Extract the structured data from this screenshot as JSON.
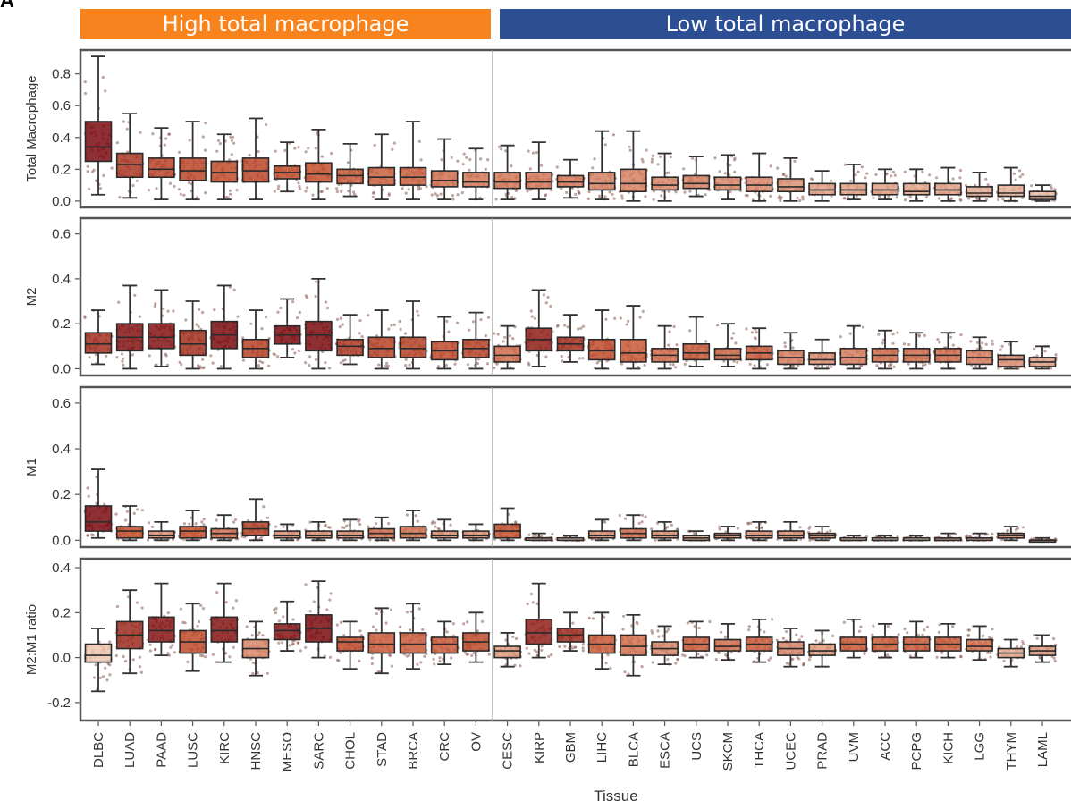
{
  "panel_letter": "A",
  "groups": {
    "high": {
      "label": "High total macrophage",
      "color": "#f7831f"
    },
    "low": {
      "label": "Low total macrophage",
      "color": "#2c4e93"
    }
  },
  "colors": {
    "high": "#7a0a10",
    "mid": "#c4502e",
    "low": "#f7dcc4",
    "point": "#8a5a50",
    "frame": "#555555"
  },
  "chart_data": {
    "type": "box",
    "xlabel": "Tissue",
    "categories": [
      "DLBC",
      "LUAD",
      "PAAD",
      "LUSC",
      "KIRC",
      "HNSC",
      "MESO",
      "SARC",
      "CHOL",
      "STAD",
      "BRCA",
      "CRC",
      "OV",
      "CESC",
      "KIRP",
      "GBM",
      "LIHC",
      "BLCA",
      "ESCA",
      "UCS",
      "SKCM",
      "THCA",
      "UCEC",
      "PRAD",
      "UVM",
      "ACC",
      "PCPG",
      "KICH",
      "LGG",
      "THYM",
      "LAML"
    ],
    "high_group_count": 13,
    "panels": [
      {
        "ylabel": "Total Macrophage",
        "ylim": [
          -0.04,
          0.95
        ],
        "yticks": [
          0.0,
          0.2,
          0.4,
          0.6,
          0.8
        ],
        "ytick_labels": [
          "0.0",
          "0.2",
          "0.4",
          "0.6",
          "0.8"
        ],
        "stats": [
          [
            0.04,
            0.25,
            0.34,
            0.5,
            0.91
          ],
          [
            0.02,
            0.15,
            0.23,
            0.3,
            0.55
          ],
          [
            0.01,
            0.15,
            0.2,
            0.27,
            0.46
          ],
          [
            0.01,
            0.13,
            0.19,
            0.27,
            0.5
          ],
          [
            0.01,
            0.12,
            0.18,
            0.25,
            0.42
          ],
          [
            0.01,
            0.12,
            0.19,
            0.27,
            0.52
          ],
          [
            0.06,
            0.14,
            0.18,
            0.22,
            0.37
          ],
          [
            0.01,
            0.12,
            0.17,
            0.24,
            0.45
          ],
          [
            0.03,
            0.11,
            0.16,
            0.2,
            0.36
          ],
          [
            0.01,
            0.1,
            0.15,
            0.21,
            0.42
          ],
          [
            0.01,
            0.1,
            0.15,
            0.21,
            0.5
          ],
          [
            0.01,
            0.09,
            0.13,
            0.19,
            0.39
          ],
          [
            0.01,
            0.09,
            0.12,
            0.18,
            0.33
          ],
          [
            0.01,
            0.08,
            0.12,
            0.18,
            0.35
          ],
          [
            0.01,
            0.08,
            0.12,
            0.18,
            0.37
          ],
          [
            0.02,
            0.09,
            0.12,
            0.16,
            0.26
          ],
          [
            0.01,
            0.07,
            0.11,
            0.18,
            0.44
          ],
          [
            0.0,
            0.06,
            0.11,
            0.2,
            0.44
          ],
          [
            0.0,
            0.07,
            0.1,
            0.15,
            0.3
          ],
          [
            0.03,
            0.08,
            0.11,
            0.16,
            0.28
          ],
          [
            0.01,
            0.07,
            0.1,
            0.15,
            0.29
          ],
          [
            0.0,
            0.06,
            0.1,
            0.15,
            0.3
          ],
          [
            0.0,
            0.06,
            0.09,
            0.14,
            0.27
          ],
          [
            0.0,
            0.04,
            0.07,
            0.11,
            0.19
          ],
          [
            0.01,
            0.04,
            0.07,
            0.11,
            0.23
          ],
          [
            0.01,
            0.04,
            0.07,
            0.11,
            0.2
          ],
          [
            0.0,
            0.04,
            0.06,
            0.11,
            0.2
          ],
          [
            0.0,
            0.04,
            0.07,
            0.11,
            0.21
          ],
          [
            0.0,
            0.03,
            0.05,
            0.09,
            0.18
          ],
          [
            0.0,
            0.03,
            0.05,
            0.1,
            0.21
          ],
          [
            0.0,
            0.01,
            0.03,
            0.06,
            0.1
          ]
        ]
      },
      {
        "ylabel": "M2",
        "ylim": [
          -0.03,
          0.67
        ],
        "yticks": [
          0.0,
          0.2,
          0.4,
          0.6
        ],
        "ytick_labels": [
          "0.0",
          "0.2",
          "0.4",
          "0.6"
        ],
        "stats": [
          [
            0.02,
            0.07,
            0.11,
            0.16,
            0.26
          ],
          [
            0.0,
            0.08,
            0.14,
            0.2,
            0.37
          ],
          [
            0.01,
            0.09,
            0.14,
            0.2,
            0.35
          ],
          [
            0.0,
            0.06,
            0.11,
            0.17,
            0.3
          ],
          [
            0.0,
            0.09,
            0.15,
            0.21,
            0.37
          ],
          [
            0.0,
            0.05,
            0.09,
            0.13,
            0.26
          ],
          [
            0.05,
            0.11,
            0.15,
            0.19,
            0.31
          ],
          [
            0.0,
            0.08,
            0.15,
            0.21,
            0.4
          ],
          [
            0.02,
            0.06,
            0.1,
            0.13,
            0.24
          ],
          [
            0.0,
            0.05,
            0.09,
            0.14,
            0.26
          ],
          [
            0.0,
            0.05,
            0.09,
            0.14,
            0.3
          ],
          [
            0.0,
            0.04,
            0.08,
            0.12,
            0.23
          ],
          [
            0.0,
            0.05,
            0.09,
            0.13,
            0.25
          ],
          [
            0.0,
            0.03,
            0.06,
            0.1,
            0.19
          ],
          [
            0.01,
            0.08,
            0.13,
            0.18,
            0.35
          ],
          [
            0.03,
            0.08,
            0.11,
            0.14,
            0.24
          ],
          [
            0.0,
            0.04,
            0.08,
            0.13,
            0.26
          ],
          [
            0.0,
            0.03,
            0.07,
            0.13,
            0.28
          ],
          [
            0.0,
            0.03,
            0.06,
            0.09,
            0.19
          ],
          [
            0.01,
            0.04,
            0.07,
            0.11,
            0.23
          ],
          [
            0.01,
            0.04,
            0.06,
            0.09,
            0.2
          ],
          [
            0.0,
            0.04,
            0.07,
            0.1,
            0.18
          ],
          [
            0.0,
            0.02,
            0.05,
            0.08,
            0.16
          ],
          [
            0.0,
            0.02,
            0.04,
            0.07,
            0.13
          ],
          [
            0.0,
            0.02,
            0.05,
            0.09,
            0.19
          ],
          [
            0.0,
            0.03,
            0.06,
            0.09,
            0.17
          ],
          [
            0.0,
            0.03,
            0.06,
            0.09,
            0.16
          ],
          [
            0.0,
            0.03,
            0.06,
            0.09,
            0.16
          ],
          [
            0.0,
            0.02,
            0.05,
            0.08,
            0.14
          ],
          [
            0.0,
            0.01,
            0.04,
            0.06,
            0.12
          ],
          [
            0.0,
            0.01,
            0.03,
            0.05,
            0.1
          ]
        ]
      },
      {
        "ylabel": "M1",
        "ylim": [
          -0.03,
          0.67
        ],
        "yticks": [
          0.0,
          0.2,
          0.4,
          0.6
        ],
        "ytick_labels": [
          "0.0",
          "0.2",
          "0.4",
          "0.6"
        ],
        "stats": [
          [
            0.01,
            0.04,
            0.08,
            0.15,
            0.31
          ],
          [
            0.0,
            0.01,
            0.04,
            0.06,
            0.15
          ],
          [
            0.0,
            0.01,
            0.02,
            0.04,
            0.08
          ],
          [
            0.0,
            0.01,
            0.04,
            0.06,
            0.13
          ],
          [
            0.0,
            0.01,
            0.03,
            0.05,
            0.11
          ],
          [
            0.0,
            0.02,
            0.05,
            0.08,
            0.18
          ],
          [
            0.0,
            0.01,
            0.02,
            0.04,
            0.07
          ],
          [
            0.0,
            0.01,
            0.02,
            0.04,
            0.08
          ],
          [
            0.0,
            0.01,
            0.02,
            0.04,
            0.09
          ],
          [
            0.0,
            0.01,
            0.03,
            0.05,
            0.1
          ],
          [
            0.0,
            0.01,
            0.03,
            0.06,
            0.13
          ],
          [
            0.0,
            0.01,
            0.02,
            0.04,
            0.09
          ],
          [
            0.0,
            0.01,
            0.02,
            0.04,
            0.07
          ],
          [
            0.0,
            0.01,
            0.04,
            0.07,
            0.14
          ],
          [
            0.0,
            0.0,
            0.01,
            0.01,
            0.03
          ],
          [
            0.0,
            0.0,
            0.0,
            0.01,
            0.02
          ],
          [
            0.0,
            0.01,
            0.02,
            0.04,
            0.09
          ],
          [
            0.0,
            0.01,
            0.03,
            0.05,
            0.11
          ],
          [
            0.0,
            0.01,
            0.02,
            0.04,
            0.08
          ],
          [
            0.0,
            0.0,
            0.01,
            0.02,
            0.04
          ],
          [
            0.0,
            0.01,
            0.02,
            0.03,
            0.06
          ],
          [
            0.0,
            0.01,
            0.02,
            0.04,
            0.08
          ],
          [
            0.0,
            0.01,
            0.02,
            0.04,
            0.08
          ],
          [
            0.0,
            0.01,
            0.02,
            0.03,
            0.06
          ],
          [
            0.0,
            0.0,
            0.0,
            0.01,
            0.02
          ],
          [
            0.0,
            0.0,
            0.0,
            0.01,
            0.02
          ],
          [
            0.0,
            0.0,
            0.0,
            0.01,
            0.02
          ],
          [
            0.0,
            0.0,
            0.01,
            0.01,
            0.03
          ],
          [
            0.0,
            0.0,
            0.01,
            0.01,
            0.03
          ],
          [
            0.0,
            0.01,
            0.02,
            0.03,
            0.06
          ],
          [
            0.0,
            0.0,
            0.0,
            0.0,
            0.01
          ]
        ]
      },
      {
        "ylabel": "M2:M1 ratio",
        "ylim": [
          -0.28,
          0.44
        ],
        "yticks": [
          -0.2,
          0.0,
          0.2,
          0.4
        ],
        "ytick_labels": [
          "-0.2",
          "0.0",
          "0.2",
          "0.4"
        ],
        "stats": [
          [
            -0.15,
            -0.02,
            0.01,
            0.06,
            0.13
          ],
          [
            -0.07,
            0.04,
            0.1,
            0.16,
            0.3
          ],
          [
            0.01,
            0.07,
            0.12,
            0.18,
            0.33
          ],
          [
            -0.06,
            0.02,
            0.07,
            0.12,
            0.24
          ],
          [
            -0.02,
            0.07,
            0.12,
            0.18,
            0.33
          ],
          [
            -0.08,
            0.0,
            0.04,
            0.08,
            0.16
          ],
          [
            0.03,
            0.08,
            0.12,
            0.15,
            0.25
          ],
          [
            0.0,
            0.07,
            0.13,
            0.19,
            0.34
          ],
          [
            -0.05,
            0.03,
            0.07,
            0.09,
            0.16
          ],
          [
            -0.07,
            0.02,
            0.06,
            0.11,
            0.22
          ],
          [
            -0.05,
            0.02,
            0.06,
            0.11,
            0.24
          ],
          [
            -0.03,
            0.02,
            0.06,
            0.09,
            0.16
          ],
          [
            -0.02,
            0.03,
            0.07,
            0.11,
            0.2
          ],
          [
            -0.04,
            0.0,
            0.03,
            0.05,
            0.11
          ],
          [
            0.0,
            0.06,
            0.11,
            0.17,
            0.33
          ],
          [
            0.03,
            0.07,
            0.1,
            0.13,
            0.2
          ],
          [
            -0.05,
            0.02,
            0.06,
            0.1,
            0.2
          ],
          [
            -0.08,
            0.01,
            0.05,
            0.1,
            0.19
          ],
          [
            -0.03,
            0.01,
            0.04,
            0.07,
            0.14
          ],
          [
            0.0,
            0.03,
            0.06,
            0.09,
            0.16
          ],
          [
            -0.01,
            0.03,
            0.05,
            0.08,
            0.15
          ],
          [
            -0.02,
            0.03,
            0.06,
            0.09,
            0.17
          ],
          [
            -0.04,
            0.01,
            0.04,
            0.07,
            0.13
          ],
          [
            -0.04,
            0.01,
            0.03,
            0.06,
            0.12
          ],
          [
            0.0,
            0.03,
            0.06,
            0.09,
            0.17
          ],
          [
            0.0,
            0.03,
            0.06,
            0.09,
            0.15
          ],
          [
            0.0,
            0.03,
            0.06,
            0.09,
            0.16
          ],
          [
            0.0,
            0.03,
            0.06,
            0.09,
            0.15
          ],
          [
            -0.01,
            0.03,
            0.05,
            0.08,
            0.14
          ],
          [
            -0.04,
            0.0,
            0.02,
            0.04,
            0.08
          ],
          [
            -0.02,
            0.01,
            0.03,
            0.05,
            0.1
          ]
        ]
      }
    ]
  }
}
